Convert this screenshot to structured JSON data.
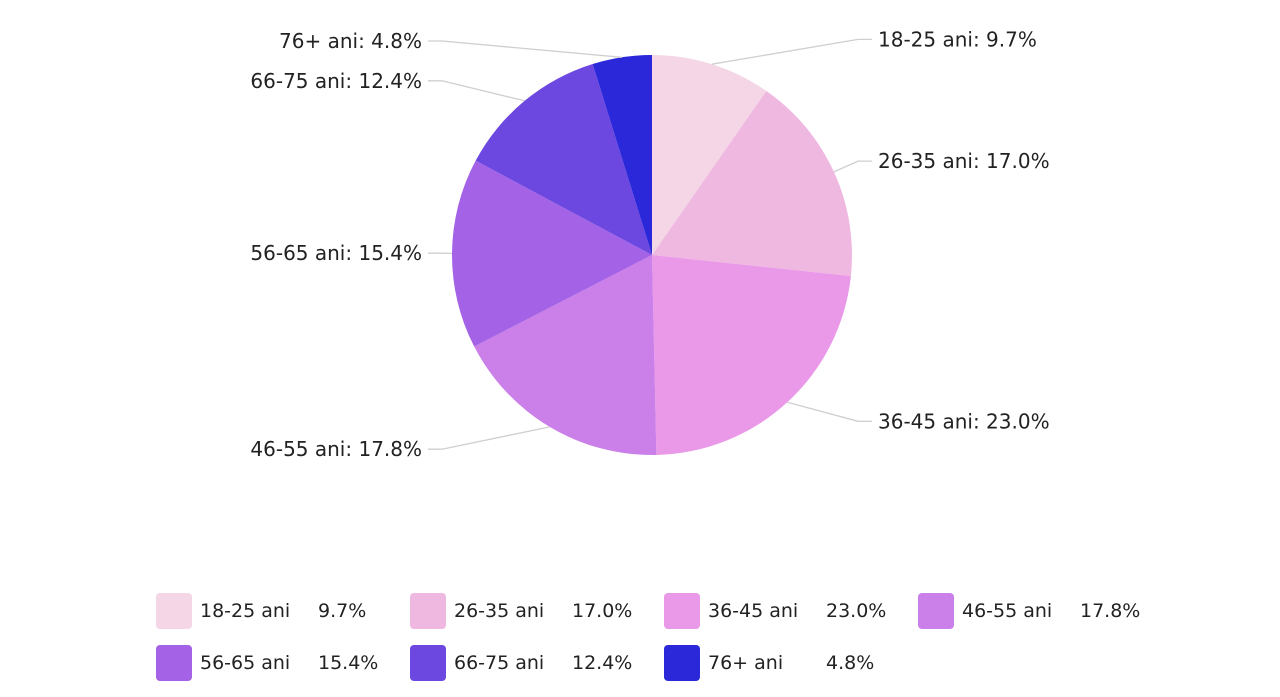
{
  "chart_data": {
    "type": "pie",
    "title": "",
    "slices": [
      {
        "label": "18-25 ani",
        "value": 9.7,
        "value_label": "9.7%",
        "chart_label": "18-25 ani: 9.7%",
        "color": "#f4d6e6"
      },
      {
        "label": "26-35 ani",
        "value": 17.0,
        "value_label": "17.0%",
        "chart_label": "26-35 ani: 17.0%",
        "color": "#efb8e0"
      },
      {
        "label": "36-45 ani",
        "value": 23.0,
        "value_label": "23.0%",
        "chart_label": "36-45 ani: 23.0%",
        "color": "#ea98e8"
      },
      {
        "label": "46-55 ani",
        "value": 17.8,
        "value_label": "17.8%",
        "chart_label": "46-55 ani: 17.8%",
        "color": "#cb7fe8"
      },
      {
        "label": "56-65 ani",
        "value": 15.4,
        "value_label": "15.4%",
        "chart_label": "56-65 ani: 15.4%",
        "color": "#a462e6"
      },
      {
        "label": "66-75 ani",
        "value": 12.4,
        "value_label": "12.4%",
        "chart_label": "66-75 ani: 12.4%",
        "color": "#6c47e0"
      },
      {
        "label": "76+ ani",
        "value": 4.8,
        "value_label": "4.8%",
        "chart_label": "76+ ani: 4.8%",
        "color": "#2b28d9"
      }
    ],
    "legend_position": "bottom"
  }
}
